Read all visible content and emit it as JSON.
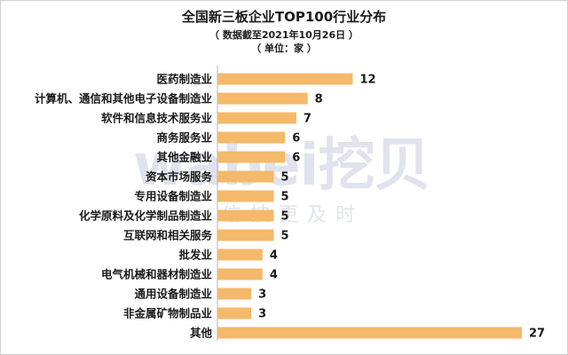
{
  "title": {
    "main": "全国新三板企业TOP100行业分布",
    "sub1": "（ 数据截至2021年10月26日 ）",
    "sub2": "（ 单位：家 ）"
  },
  "watermark": {
    "logo": "wabei挖贝",
    "slogan": "信披更及时"
  },
  "colors": {
    "bar": "#F4B96A",
    "axis": "#b0b0b0"
  },
  "chart_data": {
    "type": "bar",
    "orientation": "horizontal",
    "title": "全国新三板企业TOP100行业分布",
    "subtitle": "（ 数据截至2021年10月26日 ）（ 单位：家 ）",
    "categories": [
      "医药制造业",
      "计算机、通信和其他电子设备制造业",
      "软件和信息技术服务业",
      "商务服务业",
      "其他金融业",
      "资本市场服务",
      "专用设备制造业",
      "化学原料及化学制品制造业",
      "互联网和相关服务",
      "批发业",
      "电气机械和器材制造业",
      "通用设备制造业",
      "非金属矿物制品业",
      "其他"
    ],
    "values": [
      12,
      8,
      7,
      6,
      6,
      5,
      5,
      5,
      5,
      4,
      4,
      3,
      3,
      27
    ],
    "xlim": [
      0,
      27
    ],
    "grid": false,
    "legend": "none"
  }
}
